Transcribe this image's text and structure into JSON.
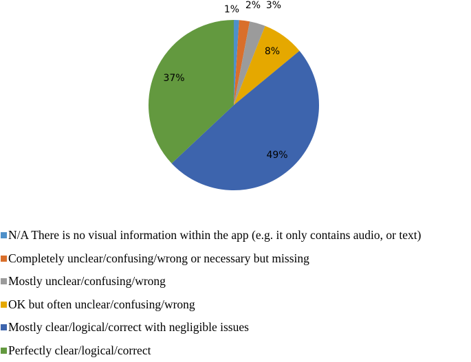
{
  "chart_data": {
    "type": "pie",
    "title": "",
    "categories": [
      "N/A There is no visual information within the app (e.g. it only contains audio, or text)",
      "Completely unclear/confusing/wrong or necessary but missing",
      "Mostly unclear/confusing/wrong",
      "OK but often unclear/confusing/wrong",
      "Mostly clear/logical/correct with negligible issues",
      "Perfectly clear/logical/correct"
    ],
    "values": [
      1,
      2,
      3,
      8,
      49,
      37
    ],
    "labels": [
      "1%",
      "2%",
      "3%",
      "8%",
      "49%",
      "37%"
    ],
    "colors": [
      "#5B9BD5",
      "#ED7D31",
      "#A5A5A5",
      "#FFC000",
      "#4472C4",
      "#70AD47"
    ],
    "render_colors": [
      "#4e90c9",
      "#d96f2b",
      "#9b9b9b",
      "#e5a800",
      "#3d64ad",
      "#63993f"
    ],
    "legend_position": "bottom"
  },
  "legend": {
    "items": [
      {
        "label": "N/A There is no visual information within the app (e.g. it only contains audio, or text)",
        "color": "#4e90c9"
      },
      {
        "label": "Completely unclear/confusing/wrong or necessary but missing",
        "color": "#d96f2b"
      },
      {
        "label": "Mostly unclear/confusing/wrong",
        "color": "#9b9b9b"
      },
      {
        "label": "OK but often unclear/confusing/wrong",
        "color": "#e5a800"
      },
      {
        "label": "Mostly clear/logical/correct with negligible issues",
        "color": "#3d64ad"
      },
      {
        "label": "Perfectly clear/logical/correct",
        "color": "#63993f"
      }
    ]
  }
}
